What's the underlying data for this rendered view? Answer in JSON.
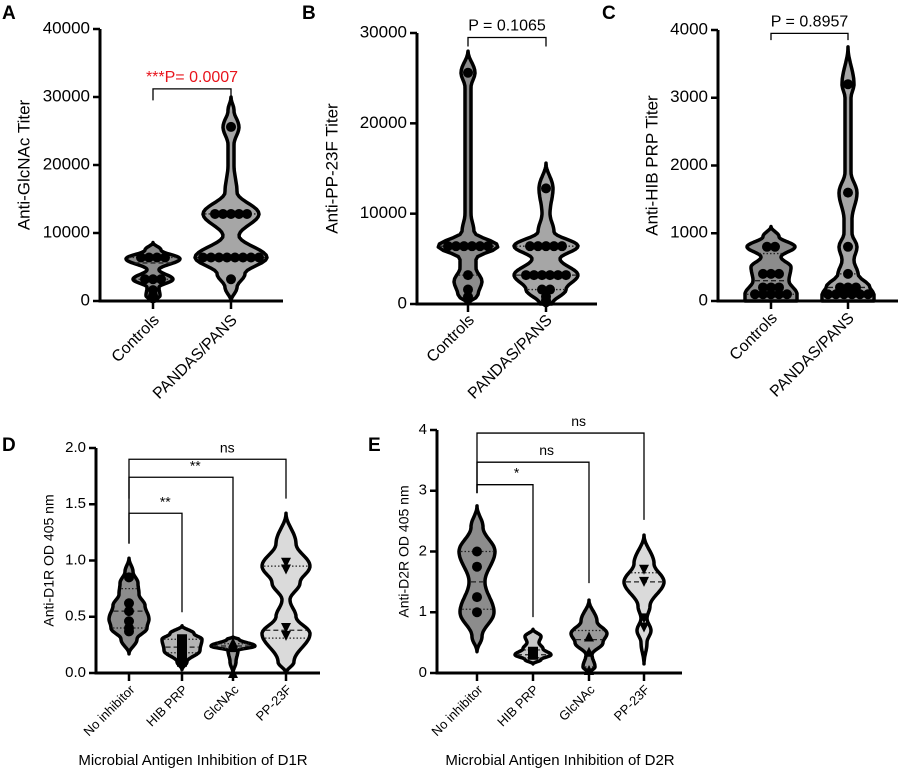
{
  "colors": {
    "dark_fill": "#8c8c8c",
    "mid_fill": "#a6a6a6",
    "light_fill": "#c4c4c4",
    "pale_fill": "#dadada",
    "significant": "#e8141c",
    "ink": "#000000"
  },
  "chart_data": [
    {
      "panel": "A",
      "type": "violin",
      "ylabel": "Anti-GlcNAc Titer",
      "ylim": [
        0,
        40000
      ],
      "yticks": [
        "0",
        "10000",
        "20000",
        "30000",
        "40000"
      ],
      "ytick_values": [
        0,
        10000,
        20000,
        30000,
        40000
      ],
      "categories": [
        "Controls",
        "PANDAS/PANS"
      ],
      "groups": [
        {
          "name": "Controls",
          "fill": "#8c8c8c",
          "marker": "circle",
          "median": 5600,
          "quartiles": [
            3200,
            6400
          ],
          "points": [
            6400,
            6400,
            6400,
            6400,
            3200,
            3200,
            3200,
            1600,
            800,
            400
          ]
        },
        {
          "name": "PANDAS/PANS",
          "fill": "#a6a6a6",
          "marker": "circle",
          "median": 6400,
          "quartiles": [
            6400,
            12800
          ],
          "points": [
            25600,
            12800,
            12800,
            12800,
            12800,
            12800,
            6400,
            6400,
            6400,
            6400,
            6400,
            6400,
            6400,
            6400,
            3200
          ]
        }
      ],
      "comparisons": [
        {
          "from": 0,
          "to": 1,
          "label": "***P= 0.0007",
          "significant": true
        }
      ]
    },
    {
      "panel": "B",
      "type": "violin",
      "ylabel": "Anti-PP-23F Titer",
      "ylim": [
        0,
        30000
      ],
      "yticks": [
        "0",
        "10000",
        "20000",
        "30000"
      ],
      "ytick_values": [
        0,
        10000,
        20000,
        30000
      ],
      "categories": [
        "Controls",
        "PANDAS/PANS"
      ],
      "groups": [
        {
          "name": "Controls",
          "fill": "#8c8c8c",
          "marker": "circle",
          "median": 6400,
          "quartiles": [
            3200,
            6400
          ],
          "points": [
            25600,
            6400,
            6400,
            6400,
            6400,
            6400,
            6400,
            3200,
            1600,
            800
          ]
        },
        {
          "name": "PANDAS/PANS",
          "fill": "#a6a6a6",
          "marker": "circle",
          "median": 3200,
          "quartiles": [
            1600,
            6400
          ],
          "points": [
            12800,
            6400,
            6400,
            6400,
            6400,
            6400,
            3200,
            3200,
            3200,
            3200,
            3200,
            3200,
            1600,
            1600,
            800,
            400,
            200
          ]
        }
      ],
      "comparisons": [
        {
          "from": 0,
          "to": 1,
          "label": "P = 0.1065",
          "significant": false
        }
      ]
    },
    {
      "panel": "C",
      "type": "violin",
      "ylabel": "Anti-HIB PRP Titer",
      "ylim": [
        0,
        4000
      ],
      "yticks": [
        "0",
        "1000",
        "2000",
        "3000",
        "4000"
      ],
      "ytick_values": [
        0,
        1000,
        2000,
        3000,
        4000
      ],
      "categories": [
        "Controls",
        "PANDAS/PANS"
      ],
      "groups": [
        {
          "name": "Controls",
          "fill": "#8c8c8c",
          "marker": "circle",
          "median": 300,
          "quartiles": [
            100,
            700
          ],
          "points": [
            800,
            800,
            400,
            400,
            400,
            200,
            200,
            200,
            100,
            100,
            100,
            100,
            100
          ]
        },
        {
          "name": "PANDAS/PANS",
          "fill": "#a6a6a6",
          "marker": "circle",
          "median": 200,
          "quartiles": [
            100,
            400
          ],
          "points": [
            3200,
            1600,
            800,
            400,
            200,
            200,
            200,
            100,
            100,
            100,
            100,
            100,
            100
          ]
        }
      ],
      "comparisons": [
        {
          "from": 0,
          "to": 1,
          "label": "P = 0.8957",
          "significant": false
        }
      ]
    },
    {
      "panel": "D",
      "type": "violin",
      "ylabel": "Anti-D1R OD 405 nm",
      "xlabel": "Microbial Antigen Inhibition of D1R",
      "ylim": [
        0,
        2.0
      ],
      "yticks": [
        "0.0",
        "0.5",
        "1.0",
        "1.5",
        "2.0"
      ],
      "ytick_values": [
        0,
        0.5,
        1.0,
        1.5,
        2.0
      ],
      "categories": [
        "No inhibitor",
        "HIB PRP",
        "GlcNAc",
        "PP-23F"
      ],
      "groups": [
        {
          "name": "No inhibitor",
          "fill": "#8c8c8c",
          "marker": "circle",
          "median": 0.55,
          "quartiles": [
            0.4,
            0.75
          ],
          "points": [
            0.85,
            0.62,
            0.55,
            0.46,
            0.4,
            0.37
          ]
        },
        {
          "name": "HIB PRP",
          "fill": "#b4b4b4",
          "marker": "square",
          "median": 0.23,
          "quartiles": [
            0.18,
            0.3
          ],
          "points": [
            0.3,
            0.25,
            0.22,
            0.18,
            0.1
          ]
        },
        {
          "name": "GlcNAc",
          "fill": "#9a9a9a",
          "marker": "triangle-up",
          "median": 0.24,
          "quartiles": [
            0.22,
            0.26
          ],
          "points": [
            0.27,
            0.25,
            0.23,
            0.0
          ]
        },
        {
          "name": "PP-23F",
          "fill": "#dadada",
          "marker": "triangle-down",
          "median": 0.38,
          "quartiles": [
            0.31,
            0.95
          ],
          "points": [
            0.98,
            0.92,
            0.4,
            0.33
          ]
        }
      ],
      "comparisons": [
        {
          "from": 0,
          "to": 1,
          "label": "**",
          "significant": true
        },
        {
          "from": 0,
          "to": 2,
          "label": "**",
          "significant": true
        },
        {
          "from": 0,
          "to": 3,
          "label": "ns",
          "significant": false
        }
      ]
    },
    {
      "panel": "E",
      "type": "violin",
      "ylabel": "Anti-D2R OD 405 nm",
      "xlabel": "Microbial Antigen Inhibition of D2R",
      "ylim": [
        0,
        4
      ],
      "yticks": [
        "0",
        "1",
        "2",
        "3",
        "4"
      ],
      "ytick_values": [
        0,
        1,
        2,
        3,
        4
      ],
      "categories": [
        "No inhibitor",
        "HIB PRP",
        "GlcNAc",
        "PP-23F"
      ],
      "groups": [
        {
          "name": "No inhibitor",
          "fill": "#8c8c8c",
          "marker": "circle",
          "median": 1.5,
          "quartiles": [
            1.05,
            2.0
          ],
          "points": [
            2.0,
            1.75,
            1.25,
            1.0
          ]
        },
        {
          "name": "HIB PRP",
          "fill": "#c8c8c8",
          "marker": "square",
          "median": 0.3,
          "quartiles": [
            0.25,
            0.38
          ],
          "points": [
            0.35,
            0.3
          ]
        },
        {
          "name": "GlcNAc",
          "fill": "#9a9a9a",
          "marker": "triangle-up",
          "median": 0.55,
          "quartiles": [
            0.1,
            0.7
          ],
          "points": [
            0.6,
            0.35,
            0.05
          ]
        },
        {
          "name": "PP-23F",
          "fill": "#dadada",
          "marker": "triangle-down",
          "median": 1.5,
          "quartiles": [
            0.9,
            1.65
          ],
          "points": [
            1.7,
            1.5,
            0.9,
            0.75
          ]
        }
      ],
      "comparisons": [
        {
          "from": 0,
          "to": 1,
          "label": "*",
          "significant": true
        },
        {
          "from": 0,
          "to": 2,
          "label": "ns",
          "significant": false
        },
        {
          "from": 0,
          "to": 3,
          "label": "ns",
          "significant": false
        }
      ]
    }
  ]
}
